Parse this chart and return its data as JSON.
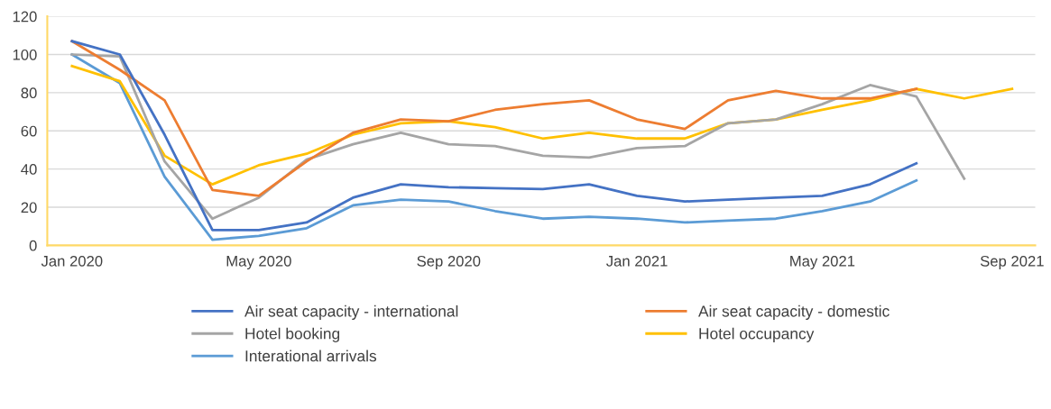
{
  "chart_data": {
    "type": "line",
    "x": [
      "2020-01",
      "2020-02",
      "2020-03",
      "2020-04",
      "2020-05",
      "2020-06",
      "2020-07",
      "2020-08",
      "2020-09",
      "2020-10",
      "2020-11",
      "2020-12",
      "2021-01",
      "2021-02",
      "2021-03",
      "2021-04",
      "2021-05",
      "2021-06",
      "2021-07",
      "2021-08",
      "2021-09"
    ],
    "series": [
      {
        "name": "Air seat capacity - international",
        "color": "#4472c4",
        "values": [
          107,
          100,
          58,
          8,
          8,
          12,
          25,
          32,
          30.5,
          30,
          29.5,
          32,
          26,
          23,
          24,
          25,
          26,
          32,
          43,
          null,
          null
        ]
      },
      {
        "name": "Air seat capacity - domestic",
        "color": "#ed7d31",
        "values": [
          107,
          92,
          76,
          29,
          26,
          44,
          59,
          66,
          65,
          71,
          74,
          76,
          66,
          61,
          76,
          81,
          77,
          77,
          82,
          null,
          null
        ]
      },
      {
        "name": "Hotel booking",
        "color": "#a5a5a5",
        "values": [
          100,
          99,
          44,
          14,
          25,
          45,
          53,
          59,
          53,
          52,
          47,
          46,
          51,
          52,
          64,
          66,
          74,
          84,
          78,
          35,
          null
        ]
      },
      {
        "name": "Hotel occupancy",
        "color": "#ffc000",
        "values": [
          94,
          86,
          47,
          32,
          42,
          48,
          58,
          64,
          65,
          62,
          56,
          59,
          56,
          56,
          64,
          66,
          71,
          76,
          82,
          77,
          82
        ]
      },
      {
        "name": "Interational arrivals",
        "color": "#5b9bd5",
        "values": [
          100,
          85,
          36,
          3,
          5,
          9,
          21,
          24,
          23,
          18,
          14,
          15,
          14,
          12,
          13,
          14,
          18,
          23,
          34,
          null,
          null
        ]
      }
    ],
    "xlim": [
      "2019-12-16",
      "2021-09-16"
    ],
    "xticks": [
      {
        "value": "2020-01",
        "label": "Jan 2020"
      },
      {
        "value": "2020-05",
        "label": "May 2020"
      },
      {
        "value": "2020-09",
        "label": "Sep 2020"
      },
      {
        "value": "2021-01",
        "label": "Jan 2021"
      },
      {
        "value": "2021-05",
        "label": "May 2021"
      },
      {
        "value": "2021-09",
        "label": "Sep 2021"
      }
    ],
    "ylim": [
      0,
      120
    ],
    "yticks": [
      0,
      20,
      40,
      60,
      80,
      100,
      120
    ],
    "grid": "y",
    "legend": "bottom",
    "marker": "none",
    "line_style": "solid"
  }
}
